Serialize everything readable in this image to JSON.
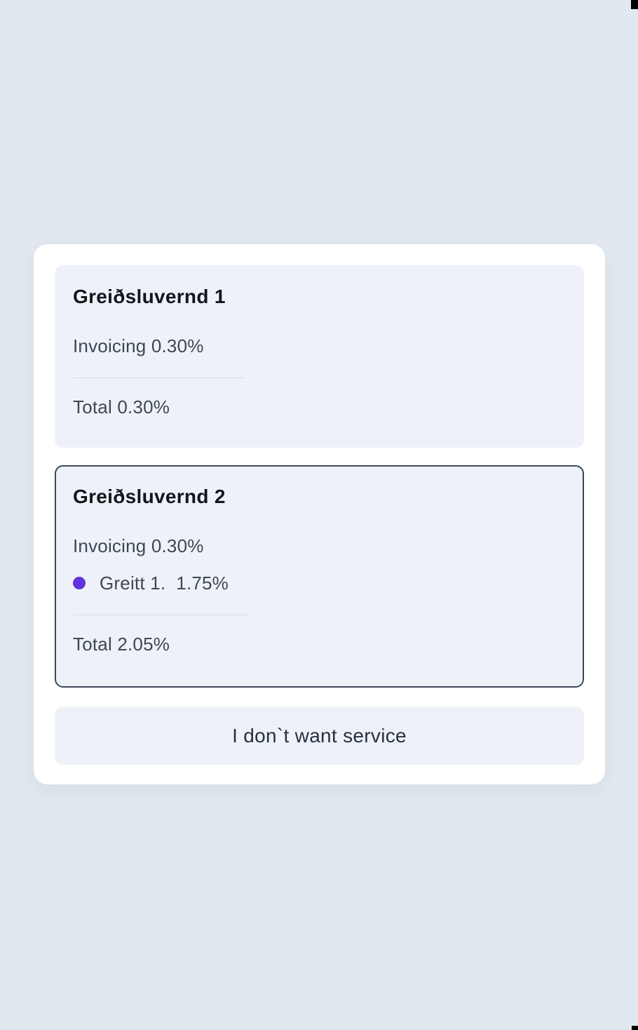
{
  "colors": {
    "page_background": "#e2e8ef",
    "panel_background": "#ffffff",
    "card_background": "#eef2f8",
    "selected_border": "#3b4759",
    "title_text": "#15161c",
    "body_text": "#3e4755",
    "divider": "#d9dee6",
    "bullet": "#6132dd",
    "button_text": "#273142"
  },
  "plans": [
    {
      "title": "Greiðsluvernd 1",
      "invoicing": "Invoicing 0.30%",
      "total": "Total 0.30%",
      "selected": false
    },
    {
      "title": "Greiðsluvernd 2",
      "invoicing": "Invoicing 0.30%",
      "greitt_label": "Greitt 1.",
      "greitt_value": "1.75%",
      "total": "Total 2.05%",
      "selected": true
    }
  ],
  "decline_button_label": "I don`t want service"
}
